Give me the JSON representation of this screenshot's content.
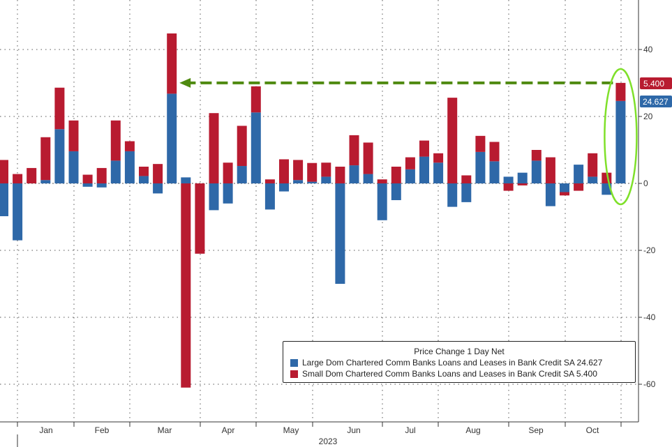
{
  "colors": {
    "large": "#2e68a8",
    "small": "#b81b30",
    "arrow": "#4f8a10",
    "ellipse": "#7fe02a",
    "grid": "#555555"
  },
  "axis": {
    "year_label": "2023",
    "y_ticks": [
      "40",
      "20",
      "0",
      "-20",
      "-40",
      "-60"
    ],
    "months": [
      "Jan",
      "Feb",
      "Mar",
      "Apr",
      "May",
      "Jun",
      "Jul",
      "Aug",
      "Sep",
      "Oct"
    ]
  },
  "legend": {
    "title": "Price Change 1 Day Net",
    "items": [
      {
        "label": "Large Dom Chartered Comm Banks Loans and Leases in Bank Credit SA 24.627"
      },
      {
        "label": "Small Dom Chartered Comm Banks Loans and Leases in Bank Credit SA 5.400"
      }
    ]
  },
  "tags": {
    "small_last": "5.400",
    "large_last": "24.627"
  },
  "chart_data": {
    "type": "bar",
    "stacked": true,
    "title": "Price Change 1 Day Net",
    "xlabel": "2023",
    "ylabel": "",
    "ylim": [
      -70,
      55
    ],
    "y_ticks": [
      40,
      20,
      0,
      -20,
      -40,
      -60
    ],
    "month_labels": [
      "Jan",
      "Feb",
      "Mar",
      "Apr",
      "May",
      "Jun",
      "Jul",
      "Aug",
      "Sep",
      "Oct"
    ],
    "series": [
      {
        "name": "Large Dom Chartered Comm Banks Loans and Leases in Bank Credit SA",
        "last": 24.627,
        "values": [
          -9.8,
          -17,
          0,
          1,
          16.2,
          9.6,
          -1,
          -1.2,
          6.8,
          9.6,
          2.2,
          -3,
          26.8,
          1.8,
          0,
          -8,
          -6,
          5.2,
          21.2,
          -7.8,
          -2.4,
          1,
          0.5,
          2,
          -30,
          5.4,
          2.8,
          -11,
          -5,
          4.2,
          8,
          6.2,
          -7,
          -5.6,
          9.4,
          6.6,
          2,
          3.2,
          6.8,
          -6.8,
          -2.6,
          5.6,
          2,
          -3.4,
          24.627
        ]
      },
      {
        "name": "Small Dom Chartered Comm Banks Loans and Leases in Bank Credit SA",
        "last": 5.4,
        "values": [
          7,
          2.8,
          4.6,
          12.8,
          12.4,
          9.2,
          2.6,
          4.6,
          12,
          3,
          2.8,
          5.8,
          18,
          -61,
          -21,
          21,
          6.2,
          12,
          7.8,
          1.2,
          7.2,
          6,
          5.6,
          4.2,
          5,
          9,
          9.4,
          1.2,
          5,
          3.6,
          4.8,
          2.8,
          25.6,
          2.4,
          4.8,
          5.8,
          -2.2,
          -0.6,
          3.2,
          7.8,
          -1,
          -2.2,
          7,
          3.2,
          5.4
        ]
      }
    ],
    "annotations": [
      {
        "type": "arrow",
        "label": "dashed arrow from latest Small value back to Mar peak"
      },
      {
        "type": "ellipse",
        "label": "highlight on latest bar"
      }
    ]
  }
}
